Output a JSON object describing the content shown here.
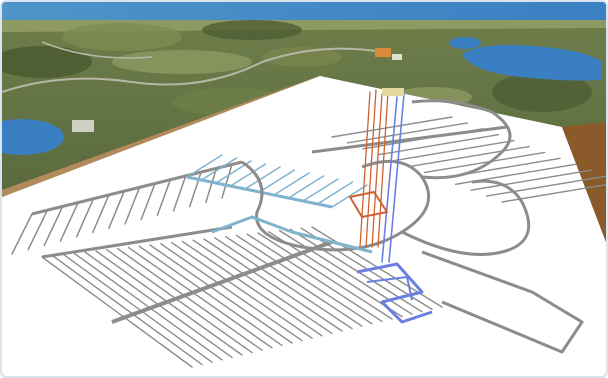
{
  "figure": {
    "kind": "3d-render",
    "subject_icon": "underground-repository-layout-icon",
    "colors": {
      "surface_dark": "#5c6b3f",
      "surface_light": "#9aa86a",
      "water": "#3a7fc2",
      "sky_sea": "#5da9d8",
      "ground_plane": "#ffffff",
      "ground_side": "#8a5a2a",
      "tunnel_gray": "#8c8c8c",
      "tunnel_cyan": "#7fb3cf",
      "shaft_orange": "#d06030",
      "shaft_blue": "#6a7fe0",
      "border": "#d8e4ee"
    },
    "repository": {
      "left_fan_tunnels": 14,
      "mid_fan_tunnels": 11,
      "lower_grid_tunnels": 26,
      "right_fan_tunnels": 12
    }
  }
}
